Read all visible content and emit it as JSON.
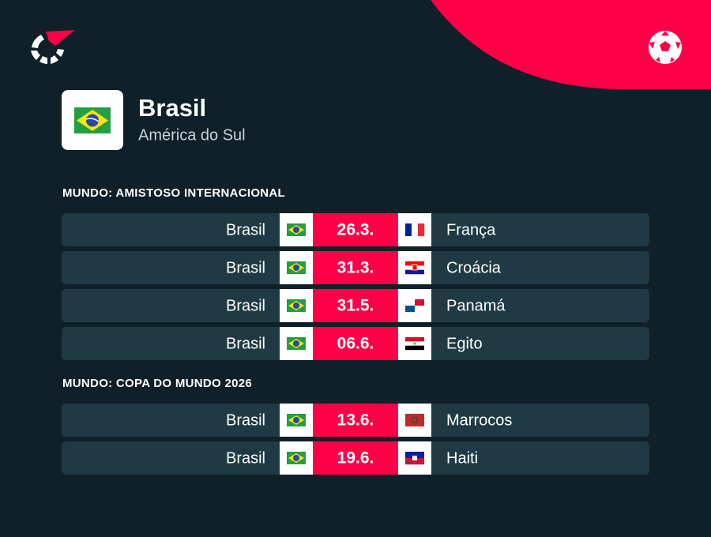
{
  "header": {
    "team": "Brasil",
    "region": "América do Sul"
  },
  "sections": [
    {
      "title": "MUNDO: AMISTOSO INTERNACIONAL",
      "matches": [
        {
          "home": "Brasil",
          "date": "26.3.",
          "away": "França"
        },
        {
          "home": "Brasil",
          "date": "31.3.",
          "away": "Croácia"
        },
        {
          "home": "Brasil",
          "date": "31.5.",
          "away": "Panamá"
        },
        {
          "home": "Brasil",
          "date": "06.6.",
          "away": "Egito"
        }
      ]
    },
    {
      "title": "MUNDO: COPA DO MUNDO 2026",
      "matches": [
        {
          "home": "Brasil",
          "date": "13.6.",
          "away": "Marrocos"
        },
        {
          "home": "Brasil",
          "date": "19.6.",
          "away": "Haiti"
        }
      ]
    }
  ]
}
